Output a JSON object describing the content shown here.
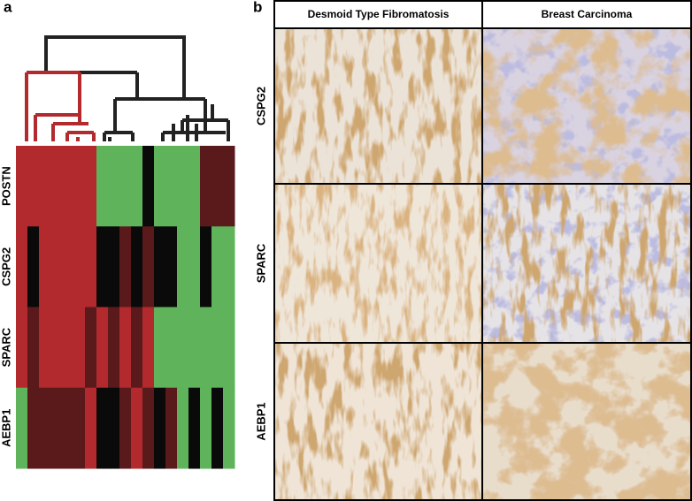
{
  "panel_a": {
    "label": "a",
    "rows": [
      "POSTN",
      "CSPG2",
      "SPARC",
      "AEBP1"
    ],
    "cells": [
      [
        "#b22a2e",
        "#b22a2e",
        "#b22a2e",
        "#b22a2e",
        "#b22a2e",
        "#b22a2e",
        "#b22a2e",
        "#5fb35a",
        "#5fb35a",
        "#5fb35a",
        "#5fb35a",
        "#0a0a0a",
        "#5fb35a",
        "#5fb35a",
        "#5fb35a",
        "#5fb35a",
        "#5a1a1c",
        "#5a1a1c",
        "#5a1a1c"
      ],
      [
        "#b22a2e",
        "#0a0a0a",
        "#b22a2e",
        "#b22a2e",
        "#b22a2e",
        "#b22a2e",
        "#b22a2e",
        "#0a0a0a",
        "#0a0a0a",
        "#5a1a1c",
        "#0a0a0a",
        "#5a1a1c",
        "#0a0a0a",
        "#0a0a0a",
        "#5fb35a",
        "#5fb35a",
        "#0a0a0a",
        "#5fb35a",
        "#5fb35a"
      ],
      [
        "#b22a2e",
        "#5a1a1c",
        "#b22a2e",
        "#b22a2e",
        "#b22a2e",
        "#b22a2e",
        "#5a1a1c",
        "#b22a2e",
        "#5a1a1c",
        "#b22a2e",
        "#5a1a1c",
        "#b22a2e",
        "#5fb35a",
        "#5fb35a",
        "#5fb35a",
        "#5fb35a",
        "#5fb35a",
        "#5fb35a",
        "#5fb35a"
      ],
      [
        "#5fb35a",
        "#5a1a1c",
        "#5a1a1c",
        "#5a1a1c",
        "#5a1a1c",
        "#5a1a1c",
        "#b22a2e",
        "#0a0a0a",
        "#0a0a0a",
        "#5a1a1c",
        "#b22a2e",
        "#5a1a1c",
        "#0a0a0a",
        "#5a1a1c",
        "#5fb35a",
        "#0a0a0a",
        "#5fb35a",
        "#0a0a0a",
        "#5fb35a"
      ]
    ]
  },
  "panel_b": {
    "label": "b",
    "columns": [
      "Desmoid Type Fibromatosis",
      "Breast Carcinoma"
    ],
    "rows": [
      "CSPG2",
      "SPARC",
      "AEBP1"
    ]
  }
}
